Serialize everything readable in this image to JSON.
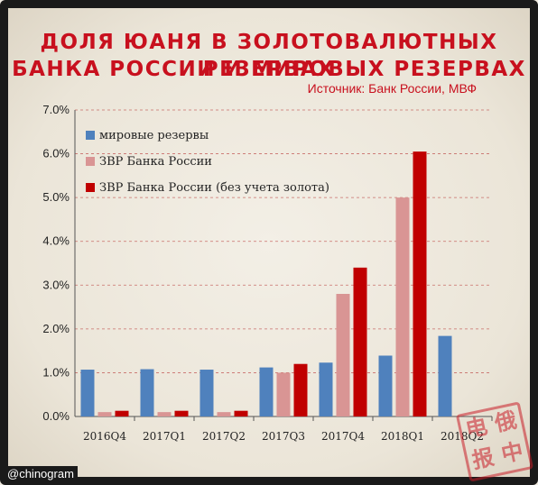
{
  "chart_data": {
    "type": "bar",
    "title": [
      "Доля юаня в золотовалютных резервах",
      "Банка России и мировых резервах"
    ],
    "source": "Источник: Банк России, МВФ",
    "categories": [
      "2016Q4",
      "2017Q1",
      "2017Q2",
      "2017Q3",
      "2017Q4",
      "2018Q1",
      "2018Q2"
    ],
    "series": [
      {
        "name": "мировые резервы",
        "color": "#4f81bd",
        "values": [
          1.07,
          1.08,
          1.07,
          1.12,
          1.23,
          1.39,
          1.84
        ]
      },
      {
        "name": "ЗВР Банка России",
        "color": "#d99594",
        "values": [
          0.1,
          0.1,
          0.1,
          1.0,
          2.8,
          5.0,
          null
        ]
      },
      {
        "name": "ЗВР Банка России (без учета золота)",
        "color": "#c00000",
        "values": [
          0.13,
          0.13,
          0.13,
          1.2,
          3.4,
          6.05,
          null
        ]
      }
    ],
    "yticks": [
      "0.0%",
      "1.0%",
      "2.0%",
      "3.0%",
      "4.0%",
      "5.0%",
      "6.0%",
      "7.0%"
    ],
    "ylim": [
      0,
      7
    ],
    "grid": true,
    "legend": "top-left"
  },
  "watermark": "@chinogram",
  "stamp": [
    "电",
    "报",
    "中",
    "俄"
  ]
}
